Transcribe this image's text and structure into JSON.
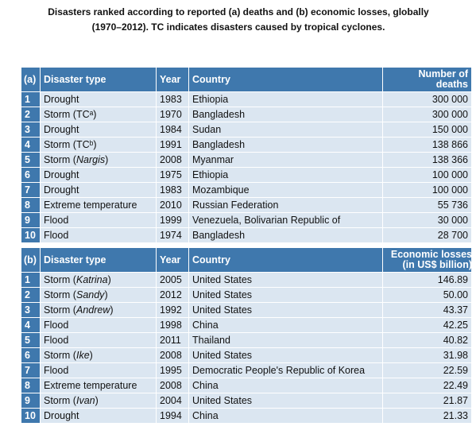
{
  "title": "Disasters ranked according to reported (a) deaths and (b) economic losses, globally (1970–2012). TC indicates disasters caused by tropical cyclones.",
  "tables": [
    {
      "header": [
        "(a)",
        "Disaster type",
        "Year",
        "Country",
        "Number of deaths"
      ],
      "rows": [
        {
          "rank": "1",
          "type": [
            "Drought"
          ],
          "year": "1983",
          "country": "Ethiopia",
          "value": "300 000"
        },
        {
          "rank": "2",
          "type": [
            "Storm (TCᵃ)"
          ],
          "year": "1970",
          "country": "Bangladesh",
          "value": "300 000"
        },
        {
          "rank": "3",
          "type": [
            "Drought"
          ],
          "year": "1984",
          "country": "Sudan",
          "value": "150 000"
        },
        {
          "rank": "4",
          "type": [
            "Storm (TCᵇ)"
          ],
          "year": "1991",
          "country": "Bangladesh",
          "value": "138 866"
        },
        {
          "rank": "5",
          "type": [
            "Storm (",
            "Nargis",
            ")"
          ],
          "year": "2008",
          "country": "Myanmar",
          "value": "138 366"
        },
        {
          "rank": "6",
          "type": [
            "Drought"
          ],
          "year": "1975",
          "country": "Ethiopia",
          "value": "100 000"
        },
        {
          "rank": "7",
          "type": [
            "Drought"
          ],
          "year": "1983",
          "country": "Mozambique",
          "value": "100 000"
        },
        {
          "rank": "8",
          "type": [
            "Extreme temperature"
          ],
          "year": "2010",
          "country": "Russian Federation",
          "value": "55 736"
        },
        {
          "rank": "9",
          "type": [
            "Flood"
          ],
          "year": "1999",
          "country": "Venezuela, Bolivarian Republic of",
          "value": "30 000"
        },
        {
          "rank": "10",
          "type": [
            "Flood"
          ],
          "year": "1974",
          "country": "Bangladesh",
          "value": "28 700"
        }
      ]
    },
    {
      "header": [
        "(b)",
        "Disaster type",
        "Year",
        "Country",
        "Economic losses (in US$ billion)"
      ],
      "rows": [
        {
          "rank": "1",
          "type": [
            "Storm (",
            "Katrina",
            ")"
          ],
          "year": "2005",
          "country": "United States",
          "value": "146.89"
        },
        {
          "rank": "2",
          "type": [
            "Storm (",
            "Sandy",
            ")"
          ],
          "year": "2012",
          "country": "United States",
          "value": "50.00"
        },
        {
          "rank": "3",
          "type": [
            "Storm (",
            "Andrew",
            ")"
          ],
          "year": "1992",
          "country": "United States",
          "value": "43.37"
        },
        {
          "rank": "4",
          "type": [
            "Flood"
          ],
          "year": "1998",
          "country": "China",
          "value": "42.25"
        },
        {
          "rank": "5",
          "type": [
            "Flood"
          ],
          "year": "2011",
          "country": "Thailand",
          "value": "40.82"
        },
        {
          "rank": "6",
          "type": [
            "Storm (",
            "Ike",
            ")"
          ],
          "year": "2008",
          "country": "United States",
          "value": "31.98"
        },
        {
          "rank": "7",
          "type": [
            "Flood"
          ],
          "year": "1995",
          "country": "Democratic People's Republic of Korea",
          "value": "22.59"
        },
        {
          "rank": "8",
          "type": [
            "Extreme temperature"
          ],
          "year": "2008",
          "country": "China",
          "value": "22.49"
        },
        {
          "rank": "9",
          "type": [
            "Storm (",
            "Ivan",
            ")"
          ],
          "year": "2004",
          "country": "United States",
          "value": "21.87"
        },
        {
          "rank": "10",
          "type": [
            "Drought"
          ],
          "year": "1994",
          "country": "China",
          "value": "21.33"
        }
      ]
    }
  ]
}
